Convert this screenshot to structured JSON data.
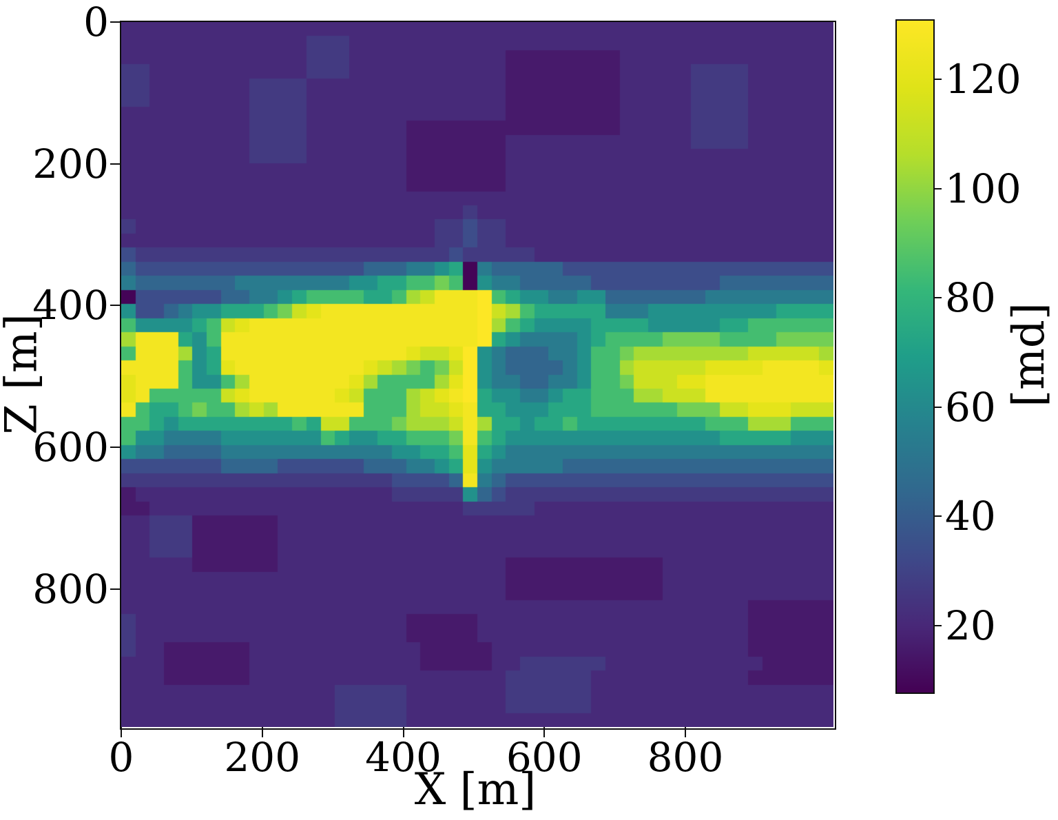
{
  "axes": {
    "xlabel": "X [m]",
    "ylabel": "Z [m]",
    "x_ticks": [
      0,
      200,
      400,
      600,
      800
    ],
    "y_ticks": [
      0,
      200,
      400,
      600,
      800
    ],
    "x_range": [
      0,
      1010
    ],
    "z_range": [
      0,
      995
    ]
  },
  "colorbar": {
    "label": "[md]",
    "ticks": [
      20,
      40,
      60,
      80,
      100,
      120
    ],
    "vmin": 8,
    "vmax": 131
  },
  "chart_data": {
    "type": "heatmap",
    "title": "",
    "xlabel": "X [m]",
    "ylabel": "Z [m]",
    "units": "md",
    "colormap": "viridis",
    "vmin": 8,
    "vmax": 131,
    "x_range": [
      0,
      1010
    ],
    "z_range": [
      0,
      995
    ],
    "grid_cols": 50,
    "grid_rows": 50,
    "legend": "values are permeability in md; grid rows top-to-bottom (Z=0 at top), 50x50 cells, each char is one cell keyed by level_values",
    "level_values": {
      "0": 9,
      "1": 16,
      "2": 21,
      "3": 27,
      "4": 34,
      "5": 44,
      "6": 54,
      "7": 64,
      "8": 74,
      "9": 85,
      "a": 95,
      "b": 104,
      "c": 113,
      "d": 121,
      "e": 127,
      "f": 131
    },
    "viridis_anchors": [
      [
        68,
        1,
        84
      ],
      [
        72,
        40,
        120
      ],
      [
        62,
        73,
        137
      ],
      [
        49,
        104,
        142
      ],
      [
        38,
        130,
        142
      ],
      [
        31,
        158,
        137
      ],
      [
        53,
        183,
        121
      ],
      [
        110,
        206,
        88
      ],
      [
        181,
        222,
        43
      ],
      [
        223,
        227,
        24
      ],
      [
        253,
        231,
        37
      ]
    ],
    "rows": [
      "22222222222222222222222222222222222222222222222222",
      "22222222222223332222222222222222222222222222222222",
      "22222222222223332222222222211111111222222222222222",
      "33222222222223332222222222211111111222223333222222",
      "33222222233332222222222222211111111222223333222222",
      "33222222233332222222222222211111111222223333222222",
      "22222222233332222222222222211111111222223333222222",
      "22222222233332222222111111111111111222223333222222",
      "22222222233332222222111111122222222222223333222222",
      "22222222233332222222111111122222222222222222222222",
      "22222222222222222222111111122222222222222222222222",
      "22222222222222222222111111122222222222222222222222",
      "22222222222222222222222222222222222222222222222222",
      "22222222222222222222222232222222222222222222222222",
      "32222222222222222222223343322222222222222222222222",
      "22222222222222222222223343322222222222222222222222",
      "43333333333333333333333433333222222222222222222222",
      "54444444444444444555667806555554444444444444444444",
      "6555555566666666778899a9076655555444444444555555555",
      "04444445566789999889bceeef98776677555555566666666666",
      "74456778889acdeeeeeeeeeeefcb988888666777777777888888",
      "9777789cdeeeeeeeeeeeeeeeefb987777888877777889999999",
      "beee879eeeeeeeeeeeeeeeeeef8766667899 99aaaa9999aaaa9",
      "9eeeb78eeeeeeeeeeeeedccdf765556679 9abbbbbbbbcccccb",
      "eeee978deeeeeeeeedcba9acf7655556799bcccccddddeeeed",
      "deee9779beeeeeeedb9999bdf76655667 99acccddeeeeeeeee",
      "de99999cdeeeeeedc999bcdef87766788999bbccceeeeeeeee",
      "e9889a99bcbeeeeee999bccde887778889 99999aaaccdddcccb",
      "998788888888 98cc999abbbceb887889888888888999bbb999",
      "97766667777777987788999ae98777777777777777888887 77",
      "766555566666666666677889d8766666666666666666666666",
      "44444445555444444555667 8d766666555555555555555555 5",
      "33333333333333333334444 5e6544444444444444444444444",
      "12222222222222222223333375433333333333333333333333",
      "11222222222222222222222233333222222222222222222222",
      "22333111111222222222222222222222222222222222222222",
      "22333111111222222222222222222222222222222222222222",
      "22333111111222222222222222222222222222222222222222",
      "22222111111222222222222222211111111111222222222222",
      "22222222222222222222222222211111111111222222222222",
      "22222222222222222222222222211111111111222222222222",
      "22222222222222222222222222222222222222222222111111",
      "32222222222222222222111112222222222222222222111111",
      "32222222222222222222111112222222222222222222111111",
      "32211111122222222222211111222222222222222222111111",
      "22211111122222222222211111223333332222222222211111 1",
      "22211111122222222222222222233333322222222222111111",
      "22222222222222233333222222233333322222222222222222",
      "22222222222222233333222222233333322222222222222222",
      "22222222222222233333222222222222222222222222222222"
    ]
  }
}
